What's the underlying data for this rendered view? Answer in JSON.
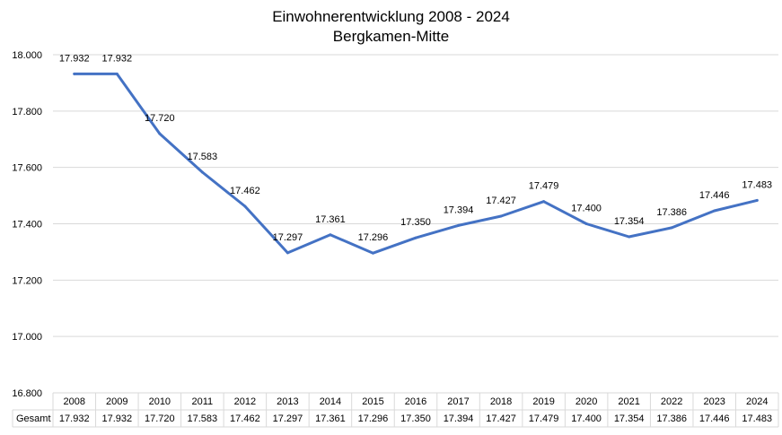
{
  "chart_data": {
    "type": "line",
    "title": "Einwohnerentwicklung 2008 - 2024",
    "subtitle": "Bergkamen-Mitte",
    "categories": [
      "2008",
      "2009",
      "2010",
      "2011",
      "2012",
      "2013",
      "2014",
      "2015",
      "2016",
      "2017",
      "2018",
      "2019",
      "2020",
      "2021",
      "2022",
      "2023",
      "2024"
    ],
    "series": [
      {
        "name": "Gesamt",
        "values": [
          17932,
          17932,
          17720,
          17583,
          17462,
          17297,
          17361,
          17296,
          17350,
          17394,
          17427,
          17479,
          17400,
          17354,
          17386,
          17446,
          17483
        ],
        "labels": [
          "17.932",
          "17.932",
          "17.720",
          "17.583",
          "17.462",
          "17.297",
          "17.361",
          "17.296",
          "17.350",
          "17.394",
          "17.427",
          "17.479",
          "17.400",
          "17.354",
          "17.386",
          "17.446",
          "17.483"
        ],
        "color": "#4472C4"
      }
    ],
    "ylim": [
      16800,
      18000
    ],
    "yticks": [
      16800,
      17000,
      17200,
      17400,
      17600,
      17800,
      18000
    ],
    "ytick_labels": [
      "16.800",
      "17.000",
      "17.200",
      "17.400",
      "17.600",
      "17.800",
      "18.000"
    ],
    "grid": true,
    "data_table": true,
    "gridline_color": "#d9d9d9"
  }
}
